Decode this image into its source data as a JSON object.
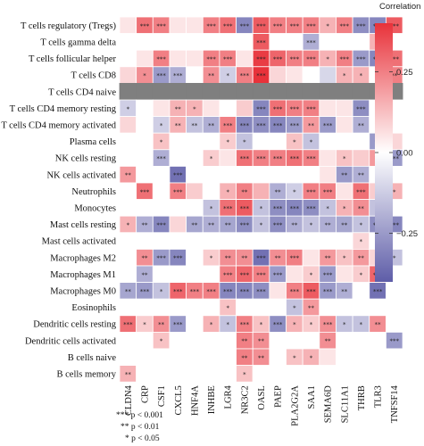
{
  "chart_data": {
    "type": "heatmap",
    "title": "",
    "legend": {
      "title": "Correlation",
      "ticks": [
        "0.25",
        "0.00",
        "−0.25"
      ],
      "tick_values": [
        0.25,
        0.0,
        -0.25
      ],
      "range": [
        -0.4,
        0.4
      ],
      "colors": {
        "low": "#5E5DA8",
        "mid": "#FFFFFF",
        "high": "#E8323A",
        "na": "#7F7F7F"
      }
    },
    "rows": [
      "T cells regulatory (Tregs)",
      "T cells gamma delta",
      "T cells follicular helper",
      "T cells CD8",
      "T cells CD4 naive",
      "T cells CD4 memory resting",
      "T cells CD4 memory activated",
      "Plasma cells",
      "NK cells resting",
      "NK cells activated",
      "Neutrophils",
      "Monocytes",
      "Mast cells resting",
      "Mast cells activated",
      "Macrophages M2",
      "Macrophages M1",
      "Macrophages M0",
      "Eosinophils",
      "Dendritic cells resting",
      "Dendritic cells activated",
      "B cells naive",
      "B cells memory"
    ],
    "columns": [
      "CLDN4",
      "CRP",
      "CSF1",
      "CXCL5",
      "HNF4A",
      "INHBE",
      "LGR4",
      "NR3C2",
      "OASL",
      "PAEP",
      "PLA2G2A",
      "SAA1",
      "SEMA6D",
      "SLC11A1",
      "THRB",
      "TLR3",
      "TNFSF14"
    ],
    "values": [
      [
        0.05,
        0.28,
        0.25,
        0.05,
        0.05,
        0.25,
        0.28,
        -0.3,
        0.32,
        0.25,
        0.25,
        0.25,
        0.15,
        0.25,
        -0.28,
        -0.3,
        0.32
      ],
      [
        0.0,
        0.0,
        0.0,
        0.0,
        0.0,
        0.0,
        0.0,
        0.0,
        0.32,
        0.0,
        0.0,
        -0.2,
        0.0,
        0.0,
        0.0,
        0.15,
        0.0
      ],
      [
        0.0,
        0.05,
        0.25,
        0.05,
        0.05,
        0.25,
        0.25,
        0.05,
        0.38,
        0.3,
        0.25,
        0.25,
        0.15,
        0.25,
        -0.25,
        -0.3,
        0.28
      ],
      [
        0.08,
        0.22,
        -0.25,
        -0.2,
        0.0,
        0.22,
        -0.12,
        0.25,
        0.4,
        0.08,
        0.05,
        0.0,
        -0.1,
        0.15,
        0.15,
        0.0,
        0.25
      ],
      [
        null,
        null,
        null,
        null,
        null,
        null,
        null,
        null,
        null,
        null,
        null,
        null,
        null,
        null,
        null,
        null,
        null
      ],
      [
        -0.12,
        0.0,
        0.05,
        0.15,
        0.15,
        0.05,
        0.0,
        0.1,
        -0.3,
        0.28,
        0.25,
        0.25,
        0.05,
        0.05,
        -0.28,
        0.0,
        0.0
      ],
      [
        0.08,
        0.0,
        -0.12,
        0.15,
        -0.15,
        -0.2,
        0.25,
        -0.3,
        -0.28,
        -0.3,
        -0.25,
        0.2,
        -0.25,
        0.05,
        -0.2,
        0.0,
        0.0
      ],
      [
        0.0,
        0.0,
        0.12,
        0.0,
        0.0,
        0.0,
        0.1,
        -0.15,
        0.0,
        0.0,
        0.12,
        -0.15,
        0.0,
        0.0,
        0.0,
        -0.25,
        0.08
      ],
      [
        0.0,
        0.0,
        -0.2,
        0.0,
        0.0,
        0.1,
        0.05,
        0.28,
        0.25,
        0.25,
        0.28,
        0.25,
        0.05,
        0.12,
        0.1,
        0.2,
        -0.25
      ],
      [
        0.2,
        0.0,
        0.0,
        -0.35,
        0.0,
        0.0,
        0.0,
        0.0,
        0.0,
        0.0,
        0.0,
        0.0,
        0.05,
        -0.25,
        -0.2,
        0.0,
        0.0
      ],
      [
        0.0,
        0.28,
        0.0,
        0.25,
        0.1,
        0.0,
        0.15,
        0.25,
        0.15,
        -0.2,
        -0.12,
        0.25,
        0.25,
        0.05,
        0.28,
        0.1,
        0.15
      ],
      [
        0.0,
        0.0,
        0.0,
        0.0,
        0.0,
        -0.15,
        0.28,
        0.32,
        -0.15,
        -0.28,
        -0.3,
        -0.28,
        -0.15,
        0.15,
        0.22,
        -0.15,
        0.0
      ],
      [
        0.15,
        -0.2,
        -0.3,
        0.08,
        -0.22,
        -0.2,
        -0.22,
        -0.28,
        -0.15,
        -0.28,
        -0.2,
        -0.15,
        -0.2,
        -0.22,
        -0.15,
        -0.28,
        -0.3
      ],
      [
        0.0,
        0.0,
        0.0,
        0.0,
        0.0,
        0.0,
        0.0,
        0.0,
        0.0,
        0.0,
        0.0,
        0.0,
        0.0,
        0.0,
        0.08,
        0.0,
        0.0
      ],
      [
        0.0,
        0.22,
        -0.25,
        -0.3,
        0.0,
        0.1,
        0.22,
        0.22,
        -0.35,
        0.22,
        0.25,
        0.05,
        0.2,
        0.12,
        0.2,
        0.08,
        -0.15
      ],
      [
        0.0,
        -0.2,
        0.0,
        0.0,
        0.0,
        0.0,
        0.25,
        0.3,
        0.25,
        -0.25,
        0.05,
        0.1,
        -0.25,
        0.05,
        0.1,
        0.3,
        0.0
      ],
      [
        -0.22,
        -0.25,
        -0.15,
        0.3,
        0.25,
        0.25,
        -0.3,
        -0.3,
        -0.28,
        0.05,
        0.25,
        0.32,
        -0.25,
        -0.2,
        0.0,
        -0.35,
        0.0
      ],
      [
        0.0,
        0.0,
        0.0,
        0.0,
        0.0,
        0.0,
        0.12,
        0.0,
        0.0,
        0.0,
        -0.15,
        0.2,
        0.0,
        0.0,
        0.0,
        0.0,
        0.0
      ],
      [
        0.28,
        0.1,
        0.22,
        -0.25,
        0.0,
        0.15,
        -0.15,
        0.25,
        0.12,
        -0.28,
        0.15,
        0.1,
        0.22,
        -0.15,
        -0.15,
        0.22,
        0.0
      ],
      [
        0.0,
        0.0,
        0.12,
        0.0,
        0.0,
        0.0,
        0.0,
        0.25,
        0.22,
        0.0,
        0.0,
        0.0,
        0.22,
        0.0,
        0.0,
        0.0,
        -0.25
      ],
      [
        0.0,
        0.0,
        0.0,
        0.0,
        0.0,
        0.0,
        0.0,
        0.25,
        0.22,
        0.0,
        0.12,
        0.15,
        0.05,
        0.0,
        0.0,
        0.0,
        0.0
      ],
      [
        0.15,
        0.0,
        0.0,
        0.0,
        0.0,
        0.0,
        0.0,
        0.12,
        0.0,
        0.0,
        0.0,
        0.0,
        0.0,
        0.0,
        0.0,
        0.0,
        0.0
      ]
    ],
    "stars": [
      [
        "",
        "***",
        "***",
        "",
        "",
        "***",
        "***",
        "***",
        "***",
        "***",
        "***",
        "***",
        "*",
        "***",
        "***",
        "***",
        "***"
      ],
      [
        "",
        "",
        "",
        "",
        "",
        "",
        "",
        "",
        "***",
        "",
        "",
        "***",
        "",
        "",
        "",
        "*",
        ""
      ],
      [
        "",
        "",
        "***",
        "",
        "",
        "***",
        "***",
        "",
        "***",
        "***",
        "***",
        "***",
        "*",
        "***",
        "***",
        "***",
        "***"
      ],
      [
        "",
        "*",
        "***",
        "***",
        "",
        "**",
        "*",
        "***",
        "***",
        "",
        "",
        "",
        "",
        "*",
        "*",
        "",
        "**"
      ],
      [
        "",
        "",
        "",
        "",
        "",
        "",
        "",
        "",
        "",
        "",
        "",
        "",
        "",
        "",
        "",
        "",
        ""
      ],
      [
        "*",
        "",
        "",
        "**",
        "*",
        "",
        "",
        "",
        "***",
        "***",
        "***",
        "***",
        "",
        "",
        "***",
        "",
        ""
      ],
      [
        "",
        "",
        "*",
        "**",
        "**",
        "**",
        "***",
        "***",
        "***",
        "***",
        "***",
        "**",
        "***",
        "",
        "**",
        "",
        ""
      ],
      [
        "",
        "",
        "*",
        "",
        "",
        "",
        "*",
        "*",
        "",
        "",
        "*",
        "*",
        "",
        "",
        "",
        "**",
        ""
      ],
      [
        "",
        "",
        "***",
        "",
        "",
        "*",
        "",
        "***",
        "***",
        "***",
        "***",
        "***",
        "",
        "*",
        "",
        "**",
        "***"
      ],
      [
        "**",
        "",
        "",
        "***",
        "",
        "",
        "",
        "",
        "",
        "",
        "",
        "",
        "",
        "**",
        "**",
        "",
        ""
      ],
      [
        "",
        "***",
        "",
        "***",
        "",
        "",
        "*",
        "**",
        "",
        "**",
        "*",
        "***",
        "***",
        "",
        "***",
        "",
        "*"
      ],
      [
        "",
        "",
        "",
        "",
        "",
        "*",
        "***",
        "***",
        "*",
        "***",
        "***",
        "***",
        "*",
        "*",
        "**",
        "*",
        ""
      ],
      [
        "*",
        "**",
        "***",
        "",
        "**",
        "**",
        "**",
        "***",
        "*",
        "***",
        "**",
        "*",
        "**",
        "**",
        "*",
        "***",
        "***"
      ],
      [
        "",
        "",
        "",
        "",
        "",
        "",
        "",
        "",
        "",
        "",
        "",
        "",
        "",
        "",
        "*",
        "",
        ""
      ],
      [
        "",
        "**",
        "***",
        "***",
        "",
        "*",
        "**",
        "**",
        "***",
        "**",
        "***",
        "",
        "**",
        "*",
        "**",
        "",
        "*"
      ],
      [
        "",
        "**",
        "",
        "",
        "",
        "",
        "***",
        "***",
        "***",
        "***",
        "",
        "*",
        "***",
        "",
        "*",
        "***",
        ""
      ],
      [
        "**",
        "***",
        "*",
        "***",
        "***",
        "***",
        "***",
        "***",
        "***",
        "",
        "***",
        "***",
        "***",
        "**",
        "",
        "***",
        ""
      ],
      [
        "",
        "",
        "",
        "",
        "",
        "",
        "*",
        "",
        "",
        "",
        "*",
        "**",
        "",
        "",
        "",
        "",
        ""
      ],
      [
        "***",
        "*",
        "**",
        "***",
        "",
        "*",
        "*",
        "***",
        "*",
        "***",
        "*",
        "*",
        "***",
        "*",
        "*",
        "**",
        ""
      ],
      [
        "",
        "",
        "*",
        "",
        "",
        "",
        "",
        "**",
        "**",
        "",
        "",
        "",
        "**",
        "",
        "",
        "",
        "***"
      ],
      [
        "",
        "",
        "",
        "",
        "",
        "",
        "",
        "**",
        "**",
        "",
        "*",
        "*",
        "",
        "",
        "",
        "",
        ""
      ],
      [
        "**",
        "",
        "",
        "",
        "",
        "",
        "",
        "*",
        "",
        "",
        "",
        "",
        "",
        "",
        "",
        "",
        ""
      ]
    ],
    "significance_note": [
      "*** p < 0.001",
      "** p < 0.01",
      "* p < 0.05"
    ]
  }
}
